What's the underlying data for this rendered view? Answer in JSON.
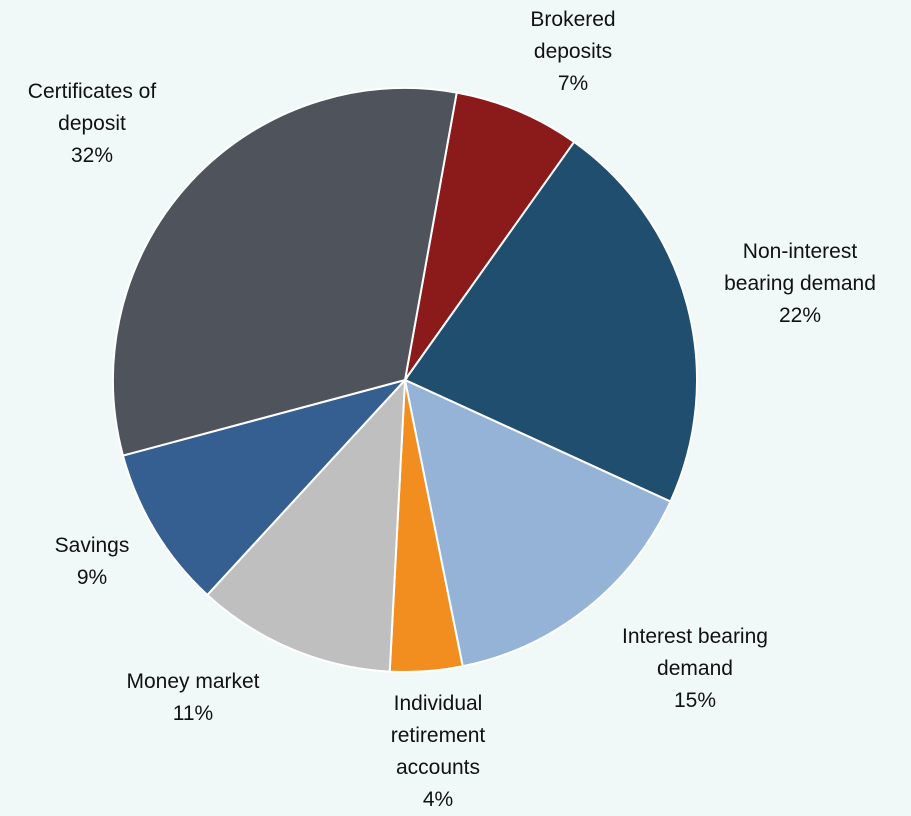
{
  "chart_data": {
    "type": "pie",
    "categories": [
      "Brokered deposits",
      "Non-interest bearing demand",
      "Interest bearing demand",
      "Individual retirement accounts",
      "Money market",
      "Savings",
      "Certificates of deposit"
    ],
    "values": [
      7,
      22,
      15,
      4,
      11,
      9,
      32
    ],
    "value_labels": [
      "7%",
      "22%",
      "15%",
      "4%",
      "11%",
      "9%",
      "32%"
    ],
    "colors": [
      "#8b1a1a",
      "#1f4e6e",
      "#95b3d7",
      "#f28e1f",
      "#bfbfbf",
      "#365f91",
      "#4f545c"
    ]
  }
}
